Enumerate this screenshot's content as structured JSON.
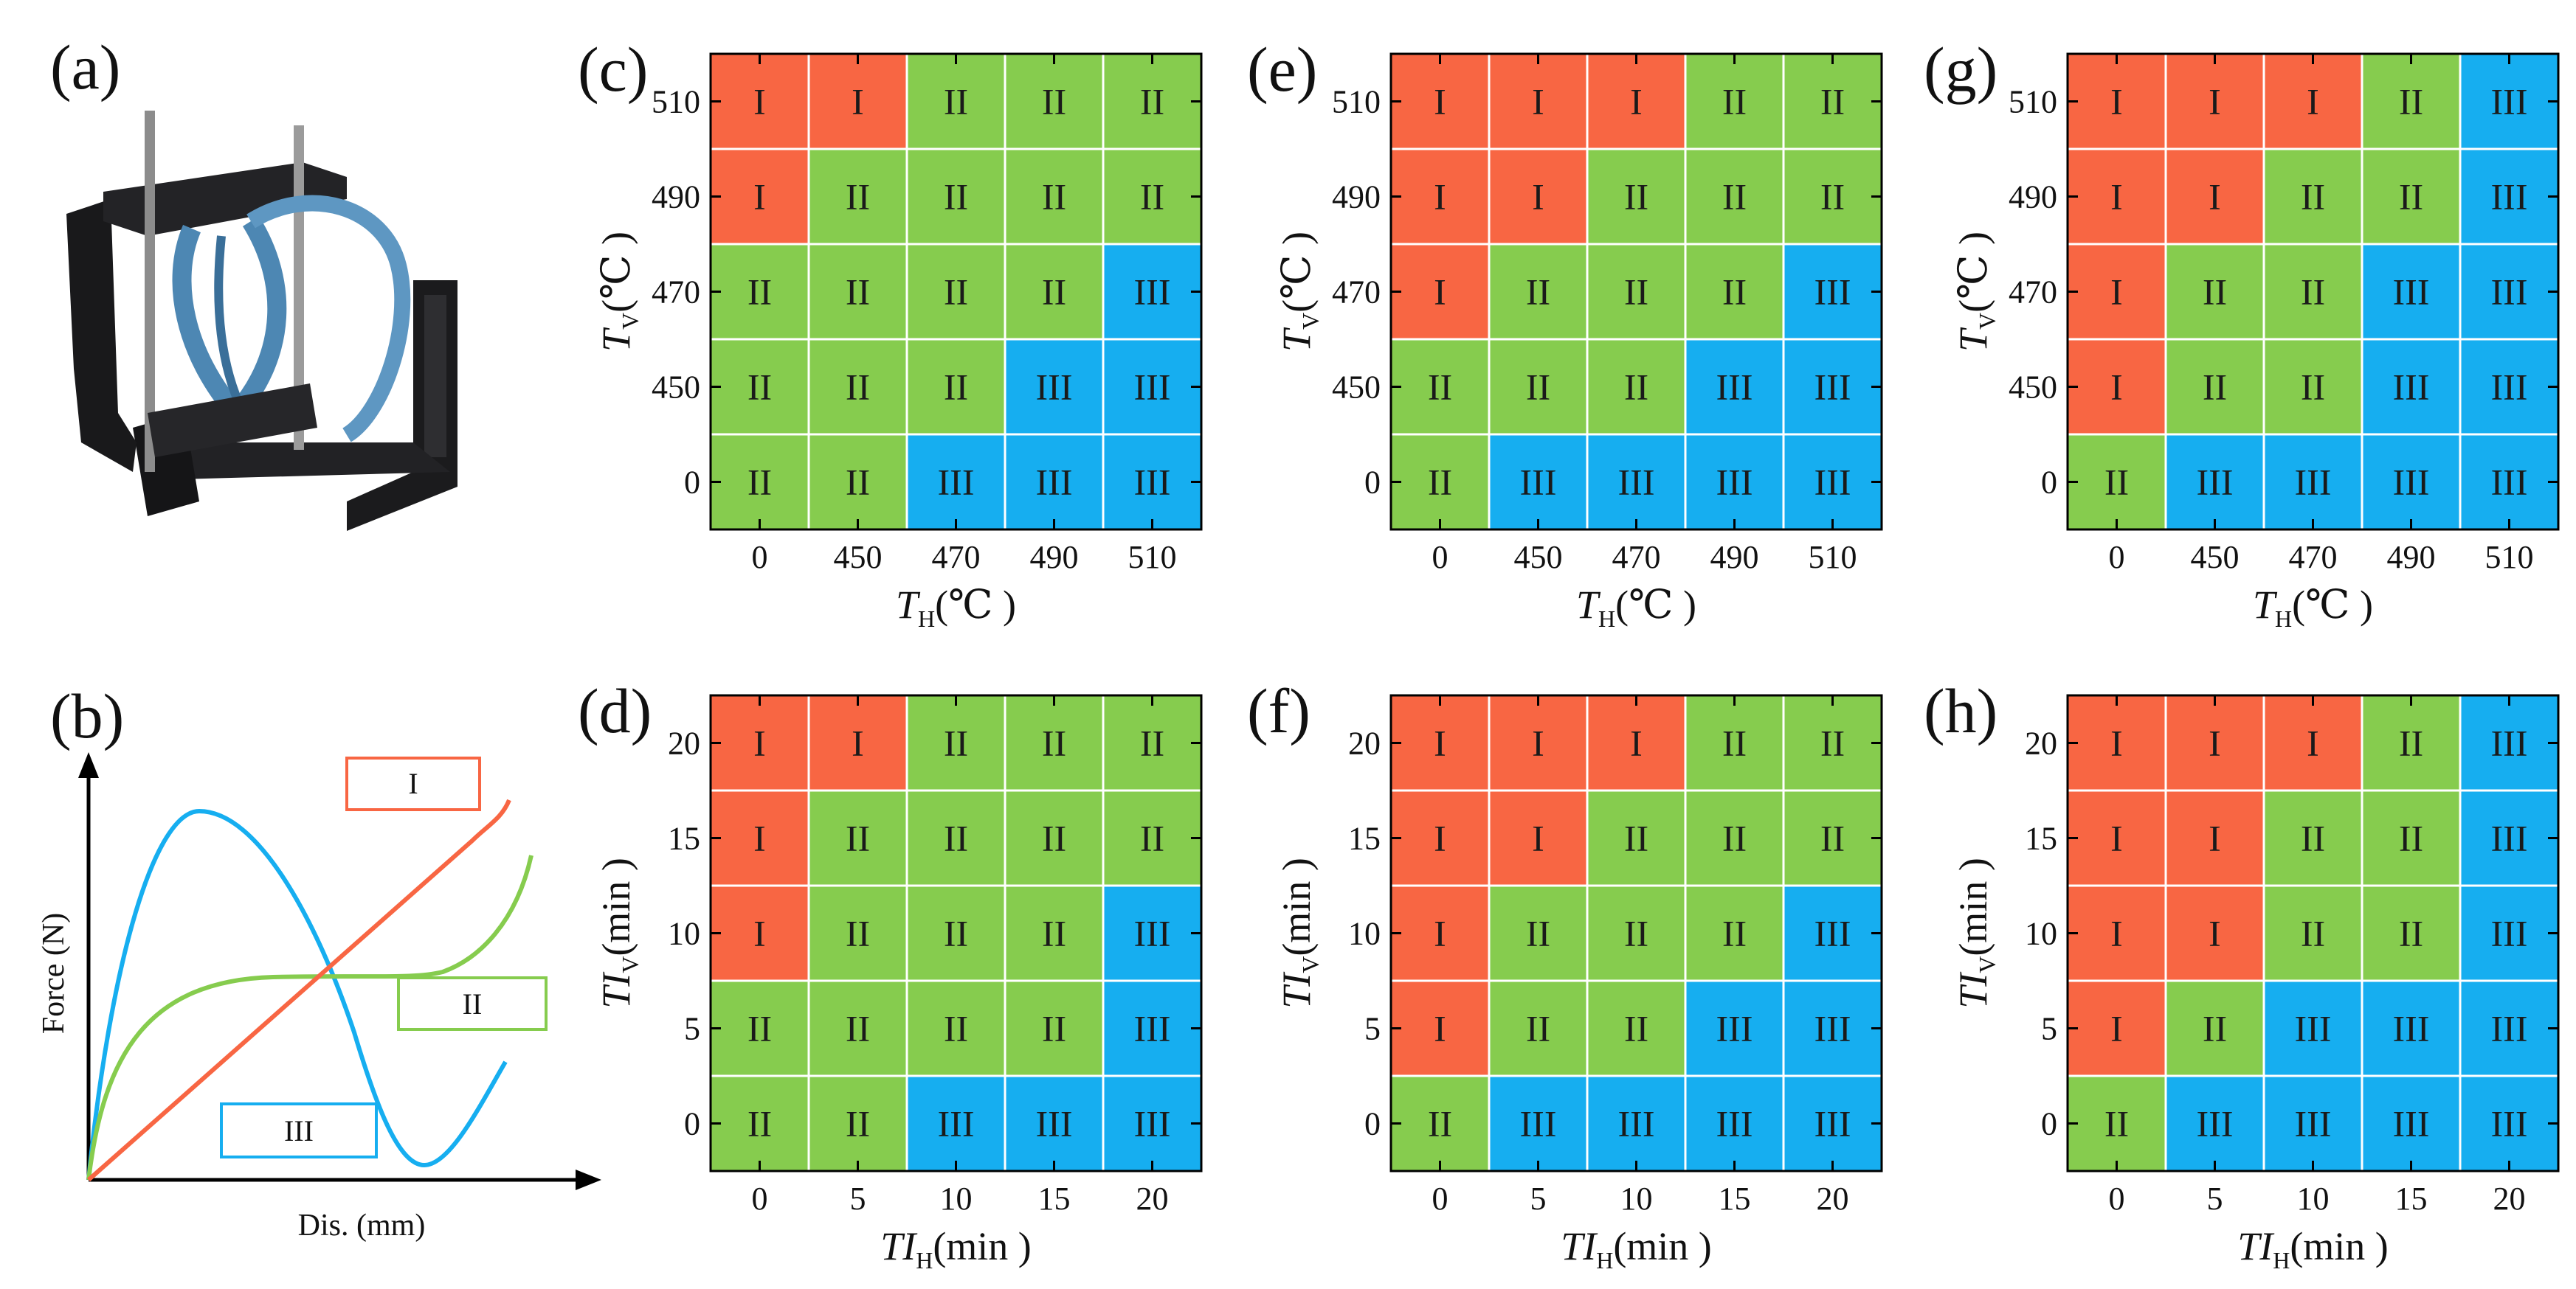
{
  "figure": {
    "panel_a": {
      "label": "(a)"
    },
    "panel_b": {
      "label": "(b)",
      "y_title": "Force (N)",
      "x_title": "Dis. (mm)",
      "legend": [
        {
          "name": "I",
          "color": "#f86643"
        },
        {
          "name": "II",
          "color": "#86cc4e"
        },
        {
          "name": "III",
          "color": "#16aef0"
        }
      ]
    }
  },
  "colors": {
    "I": "#f86643",
    "II": "#86cc4e",
    "III": "#16aef0"
  },
  "chart_data": [
    {
      "type": "heatmap",
      "label": "(c)",
      "x_categories": [
        "0",
        "450",
        "470",
        "490",
        "510"
      ],
      "y_categories": [
        "0",
        "450",
        "470",
        "490",
        "510"
      ],
      "x_title": {
        "main": "T",
        "sub": "H",
        "unit": "(℃ )"
      },
      "y_title": {
        "main": "T",
        "sub": "V",
        "unit": "(℃ )"
      },
      "rows": [
        [
          "I",
          "I",
          "II",
          "II",
          "II"
        ],
        [
          "I",
          "II",
          "II",
          "II",
          "II"
        ],
        [
          "II",
          "II",
          "II",
          "II",
          "III"
        ],
        [
          "II",
          "II",
          "II",
          "III",
          "III"
        ],
        [
          "II",
          "II",
          "III",
          "III",
          "III"
        ]
      ]
    },
    {
      "type": "heatmap",
      "label": "(d)",
      "x_categories": [
        "0",
        "5",
        "10",
        "15",
        "20"
      ],
      "y_categories": [
        "0",
        "5",
        "10",
        "15",
        "20"
      ],
      "x_title": {
        "main": "TI",
        "sub": "H",
        "unit": "(min )"
      },
      "y_title": {
        "main": "TI",
        "sub": "V",
        "unit": "(min )"
      },
      "rows": [
        [
          "I",
          "I",
          "II",
          "II",
          "II"
        ],
        [
          "I",
          "II",
          "II",
          "II",
          "II"
        ],
        [
          "I",
          "II",
          "II",
          "II",
          "III"
        ],
        [
          "II",
          "II",
          "II",
          "II",
          "III"
        ],
        [
          "II",
          "II",
          "III",
          "III",
          "III"
        ]
      ]
    },
    {
      "type": "heatmap",
      "label": "(e)",
      "x_categories": [
        "0",
        "450",
        "470",
        "490",
        "510"
      ],
      "y_categories": [
        "0",
        "450",
        "470",
        "490",
        "510"
      ],
      "x_title": {
        "main": "T",
        "sub": "H",
        "unit": "(℃ )"
      },
      "y_title": {
        "main": "T",
        "sub": "V",
        "unit": "(℃ )"
      },
      "rows": [
        [
          "I",
          "I",
          "I",
          "II",
          "II"
        ],
        [
          "I",
          "I",
          "II",
          "II",
          "II"
        ],
        [
          "I",
          "II",
          "II",
          "II",
          "III"
        ],
        [
          "II",
          "II",
          "II",
          "III",
          "III"
        ],
        [
          "II",
          "III",
          "III",
          "III",
          "III"
        ]
      ]
    },
    {
      "type": "heatmap",
      "label": "(f)",
      "x_categories": [
        "0",
        "5",
        "10",
        "15",
        "20"
      ],
      "y_categories": [
        "0",
        "5",
        "10",
        "15",
        "20"
      ],
      "x_title": {
        "main": "TI",
        "sub": "H",
        "unit": "(min )"
      },
      "y_title": {
        "main": "TI",
        "sub": "V",
        "unit": "(min )"
      },
      "rows": [
        [
          "I",
          "I",
          "I",
          "II",
          "II"
        ],
        [
          "I",
          "I",
          "II",
          "II",
          "II"
        ],
        [
          "I",
          "II",
          "II",
          "II",
          "III"
        ],
        [
          "I",
          "II",
          "II",
          "III",
          "III"
        ],
        [
          "II",
          "III",
          "III",
          "III",
          "III"
        ]
      ]
    },
    {
      "type": "heatmap",
      "label": "(g)",
      "x_categories": [
        "0",
        "450",
        "470",
        "490",
        "510"
      ],
      "y_categories": [
        "0",
        "450",
        "470",
        "490",
        "510"
      ],
      "x_title": {
        "main": "T",
        "sub": "H",
        "unit": "(℃ )"
      },
      "y_title": {
        "main": "T",
        "sub": "V",
        "unit": "(℃ )"
      },
      "rows": [
        [
          "I",
          "I",
          "I",
          "II",
          "III"
        ],
        [
          "I",
          "I",
          "II",
          "II",
          "III"
        ],
        [
          "I",
          "II",
          "II",
          "III",
          "III"
        ],
        [
          "I",
          "II",
          "II",
          "III",
          "III"
        ],
        [
          "II",
          "III",
          "III",
          "III",
          "III"
        ]
      ]
    },
    {
      "type": "heatmap",
      "label": "(h)",
      "x_categories": [
        "0",
        "5",
        "10",
        "15",
        "20"
      ],
      "y_categories": [
        "0",
        "5",
        "10",
        "15",
        "20"
      ],
      "x_title": {
        "main": "TI",
        "sub": "H",
        "unit": "(min )"
      },
      "y_title": {
        "main": "TI",
        "sub": "V",
        "unit": "(min )"
      },
      "rows": [
        [
          "I",
          "I",
          "I",
          "II",
          "III"
        ],
        [
          "I",
          "I",
          "II",
          "II",
          "III"
        ],
        [
          "I",
          "I",
          "II",
          "II",
          "III"
        ],
        [
          "I",
          "II",
          "III",
          "III",
          "III"
        ],
        [
          "II",
          "III",
          "III",
          "III",
          "III"
        ]
      ]
    }
  ]
}
